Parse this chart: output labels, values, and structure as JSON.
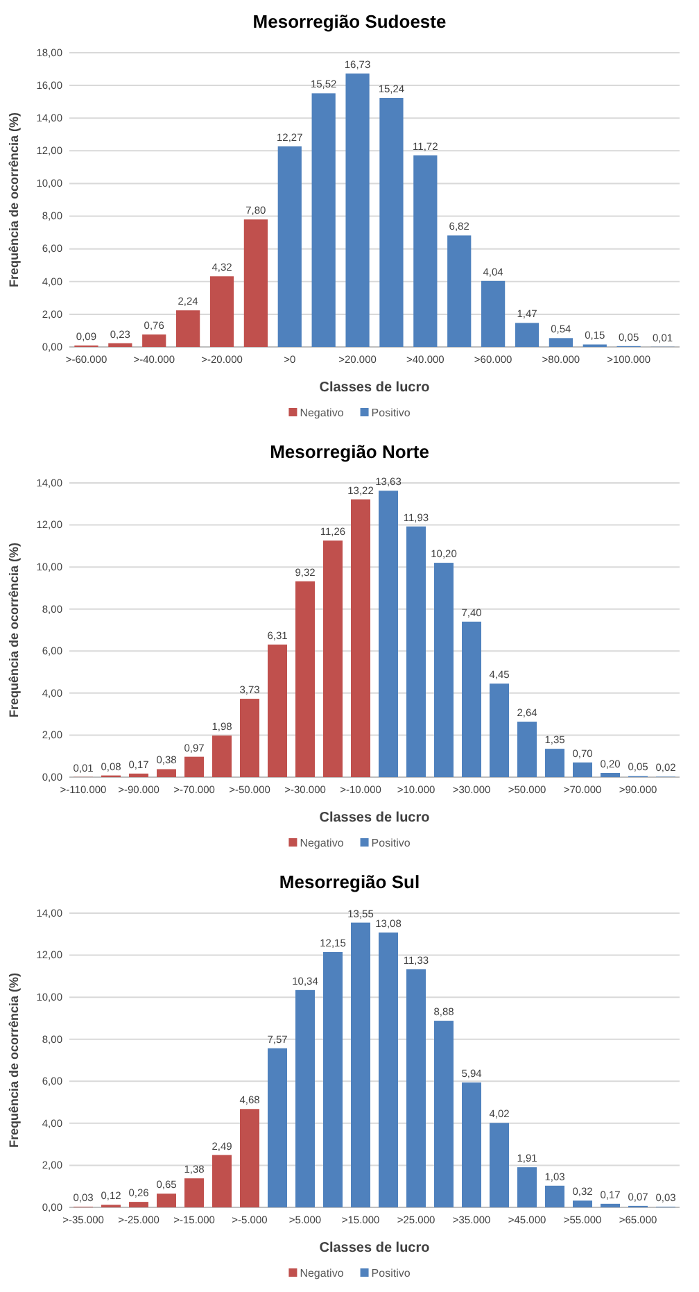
{
  "chart_data": [
    {
      "type": "bar",
      "title": "Mesorregião Sudoeste",
      "xlabel": "Classes de lucro",
      "ylabel": "Frequência de ocorrência (%)",
      "grid": "y",
      "legend": "bottom",
      "categories": [
        ">-60.000",
        null,
        ">-40.000",
        null,
        ">-20.000",
        null,
        ">0",
        null,
        ">20.000",
        null,
        ">40.000",
        null,
        ">60.000",
        null,
        ">80.000",
        null,
        ">100.000",
        null
      ],
      "ylim": [
        0,
        18
      ],
      "yticks": [
        {
          "value": 0,
          "label": "0,00"
        },
        {
          "value": 2,
          "label": "2,00"
        },
        {
          "value": 4,
          "label": "4,00"
        },
        {
          "value": 6,
          "label": "6,00"
        },
        {
          "value": 8,
          "label": "8,00"
        },
        {
          "value": 10,
          "label": "10,00"
        },
        {
          "value": 12,
          "label": "12,00"
        },
        {
          "value": 14,
          "label": "14,00"
        },
        {
          "value": 16,
          "label": "16,00"
        },
        {
          "value": 18,
          "label": "18,00"
        }
      ],
      "series": [
        {
          "name": "Negativo",
          "color": "#c0504d",
          "values": [
            0.09,
            0.23,
            0.76,
            2.24,
            4.32,
            7.8,
            null,
            null,
            null,
            null,
            null,
            null,
            null,
            null,
            null,
            null,
            null,
            null
          ],
          "value_labels": [
            "0,09",
            "0,23",
            "0,76",
            "2,24",
            "4,32",
            "7,80",
            null,
            null,
            null,
            null,
            null,
            null,
            null,
            null,
            null,
            null,
            null,
            null
          ]
        },
        {
          "name": "Positivo",
          "color": "#4f81bd",
          "values": [
            null,
            null,
            null,
            null,
            null,
            null,
            12.27,
            15.52,
            16.73,
            15.24,
            11.72,
            6.82,
            4.04,
            1.47,
            0.54,
            0.15,
            0.05,
            0.01
          ],
          "value_labels": [
            null,
            null,
            null,
            null,
            null,
            null,
            "12,27",
            "15,52",
            "16,73",
            "15,24",
            "11,72",
            "6,82",
            "4,04",
            "1,47",
            "0,54",
            "0,15",
            "0,05",
            "0,01"
          ]
        }
      ]
    },
    {
      "type": "bar",
      "title": "Mesorregião Norte",
      "xlabel": "Classes de lucro",
      "ylabel": "Frequência de ocorrência (%)",
      "grid": "y",
      "legend": "bottom",
      "categories": [
        ">-110.000",
        null,
        ">-90.000",
        null,
        ">-70.000",
        null,
        ">-50.000",
        null,
        ">-30.000",
        null,
        ">-10.000",
        null,
        ">10.000",
        null,
        ">30.000",
        null,
        ">50.000",
        null,
        ">70.000",
        null,
        ">90.000",
        null
      ],
      "ylim": [
        0,
        14
      ],
      "yticks": [
        {
          "value": 0,
          "label": "0,00"
        },
        {
          "value": 2,
          "label": "2,00"
        },
        {
          "value": 4,
          "label": "4,00"
        },
        {
          "value": 6,
          "label": "6,00"
        },
        {
          "value": 8,
          "label": "8,00"
        },
        {
          "value": 10,
          "label": "10,00"
        },
        {
          "value": 12,
          "label": "12,00"
        },
        {
          "value": 14,
          "label": "14,00"
        }
      ],
      "series": [
        {
          "name": "Negativo",
          "color": "#c0504d",
          "values": [
            0.01,
            0.08,
            0.17,
            0.38,
            0.97,
            1.98,
            3.73,
            6.31,
            9.32,
            11.26,
            13.22,
            null,
            null,
            null,
            null,
            null,
            null,
            null,
            null,
            null,
            null,
            null
          ],
          "value_labels": [
            "0,01",
            "0,08",
            "0,17",
            "0,38",
            "0,97",
            "1,98",
            "3,73",
            "6,31",
            "9,32",
            "11,26",
            "13,22",
            null,
            null,
            null,
            null,
            null,
            null,
            null,
            null,
            null,
            null,
            null
          ]
        },
        {
          "name": "Positivo",
          "color": "#4f81bd",
          "values": [
            null,
            null,
            null,
            null,
            null,
            null,
            null,
            null,
            null,
            null,
            null,
            13.63,
            11.93,
            10.2,
            7.4,
            4.45,
            2.64,
            1.35,
            0.7,
            0.2,
            0.05,
            0.02
          ],
          "value_labels": [
            null,
            null,
            null,
            null,
            null,
            null,
            null,
            null,
            null,
            null,
            null,
            "13,63",
            "11,93",
            "10,20",
            "7,40",
            "4,45",
            "2,64",
            "1,35",
            "0,70",
            "0,20",
            "0,05",
            "0,02"
          ]
        }
      ]
    },
    {
      "type": "bar",
      "title": "Mesorregião Sul",
      "xlabel": "Classes de lucro",
      "ylabel": "Frequência de ocorrência (%)",
      "grid": "y",
      "legend": "bottom",
      "categories": [
        ">-35.000",
        null,
        ">-25.000",
        null,
        ">-15.000",
        null,
        ">-5.000",
        null,
        ">5.000",
        null,
        ">15.000",
        null,
        ">25.000",
        null,
        ">35.000",
        null,
        ">45.000",
        null,
        ">55.000",
        null,
        ">65.000",
        null
      ],
      "ylim": [
        0,
        14
      ],
      "yticks": [
        {
          "value": 0,
          "label": "0,00"
        },
        {
          "value": 2,
          "label": "2,00"
        },
        {
          "value": 4,
          "label": "4,00"
        },
        {
          "value": 6,
          "label": "6,00"
        },
        {
          "value": 8,
          "label": "8,00"
        },
        {
          "value": 10,
          "label": "10,00"
        },
        {
          "value": 12,
          "label": "12,00"
        },
        {
          "value": 14,
          "label": "14,00"
        }
      ],
      "series": [
        {
          "name": "Negativo",
          "color": "#c0504d",
          "values": [
            0.03,
            0.12,
            0.26,
            0.65,
            1.38,
            2.49,
            4.68,
            null,
            null,
            null,
            null,
            null,
            null,
            null,
            null,
            null,
            null,
            null,
            null,
            null,
            null,
            null
          ],
          "value_labels": [
            "0,03",
            "0,12",
            "0,26",
            "0,65",
            "1,38",
            "2,49",
            "4,68",
            null,
            null,
            null,
            null,
            null,
            null,
            null,
            null,
            null,
            null,
            null,
            null,
            null,
            null,
            null
          ]
        },
        {
          "name": "Positivo",
          "color": "#4f81bd",
          "values": [
            null,
            null,
            null,
            null,
            null,
            null,
            null,
            7.57,
            10.34,
            12.15,
            13.55,
            13.08,
            11.33,
            8.88,
            5.94,
            4.02,
            1.91,
            1.03,
            0.32,
            0.17,
            0.07,
            0.03
          ],
          "value_labels": [
            null,
            null,
            null,
            null,
            null,
            null,
            null,
            "7,57",
            "10,34",
            "12,15",
            "13,55",
            "13,08",
            "11,33",
            "8,88",
            "5,94",
            "4,02",
            "1,91",
            "1,03",
            "0,32",
            "0,17",
            "0,07",
            "0,03"
          ]
        }
      ]
    }
  ]
}
